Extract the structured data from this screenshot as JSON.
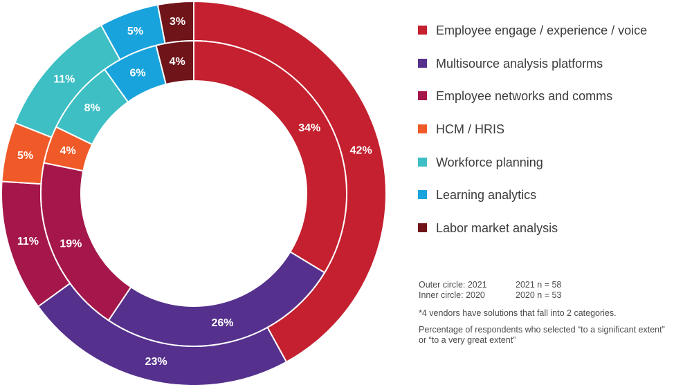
{
  "chart_data": {
    "type": "donut",
    "rings": [
      {
        "name": "Outer circle: 2021",
        "year": "2021",
        "values": [
          42,
          23,
          11,
          5,
          11,
          5,
          3
        ],
        "labels": [
          "42%",
          "23%",
          "11%",
          "5%",
          "11%",
          "5%",
          "3%"
        ]
      },
      {
        "name": "Inner circle: 2020",
        "year": "2020",
        "values": [
          34,
          26,
          19,
          4,
          8,
          6,
          4
        ],
        "labels": [
          "34%",
          "26%",
          "19%",
          "4%",
          "8%",
          "6%",
          "4%"
        ]
      }
    ],
    "categories": [
      "Employee engage / experience / voice",
      "Multisource analysis platforms",
      "Employee networks and comms",
      "HCM / HRIS",
      "Workforce planning",
      "Learning analytics",
      "Labor market analysis"
    ],
    "colors": [
      "#c4202f",
      "#55308d",
      "#a5174a",
      "#ef5a28",
      "#3dbfc4",
      "#19a3dc",
      "#6f1419"
    ],
    "legend_position": "right"
  },
  "notes": {
    "outer": "Outer circle: 2021",
    "outer_n": "2021 n = 58",
    "inner": "Inner circle: 2020",
    "inner_n": "2020 n = 53",
    "footnote": "*4 vendors have solutions that fall into 2 categories.",
    "description": "Percentage of respondents who selected “to a significant extent” or “to a very great extent”"
  }
}
